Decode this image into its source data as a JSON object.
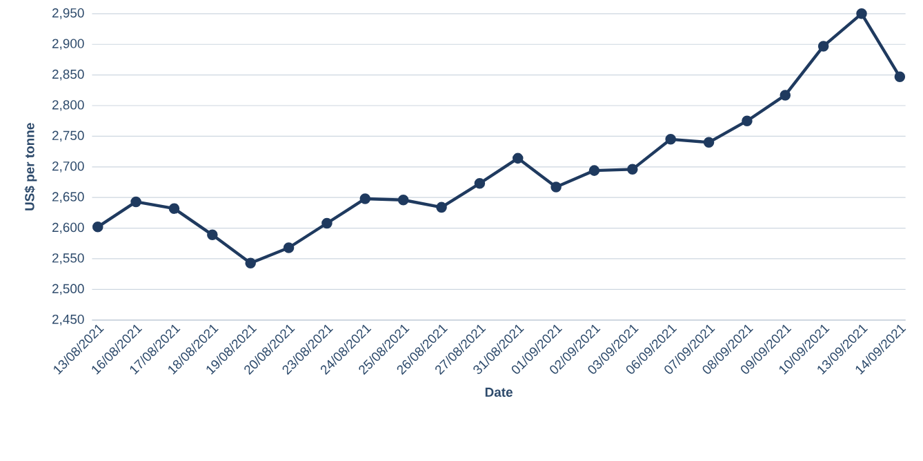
{
  "chart_data": {
    "type": "line",
    "xlabel": "Date",
    "ylabel": "US$ per tonne",
    "categories": [
      "13/08/2021",
      "16/08/2021",
      "17/08/2021",
      "18/08/2021",
      "19/08/2021",
      "20/08/2021",
      "23/08/2021",
      "24/08/2021",
      "25/08/2021",
      "26/08/2021",
      "27/08/2021",
      "31/08/2021",
      "01/09/2021",
      "02/09/2021",
      "03/09/2021",
      "06/09/2021",
      "07/09/2021",
      "08/09/2021",
      "09/09/2021",
      "10/09/2021",
      "13/09/2021",
      "14/09/2021"
    ],
    "values": [
      2602,
      2643,
      2632,
      2589,
      2543,
      2568,
      2608,
      2648,
      2646,
      2634,
      2673,
      2714,
      2667,
      2694,
      2696,
      2745,
      2740,
      2775,
      2817,
      2897,
      2950,
      2847
    ],
    "color": "#1f3a5f",
    "ylim": [
      2450,
      2950
    ],
    "yticks": [
      {
        "value": 2450,
        "label": "2,450"
      },
      {
        "value": 2500,
        "label": "2,500"
      },
      {
        "value": 2550,
        "label": "2,550"
      },
      {
        "value": 2600,
        "label": "2,600"
      },
      {
        "value": 2650,
        "label": "2,650"
      },
      {
        "value": 2700,
        "label": "2,700"
      },
      {
        "value": 2750,
        "label": "2,750"
      },
      {
        "value": 2800,
        "label": "2,800"
      },
      {
        "value": 2850,
        "label": "2,850"
      },
      {
        "value": 2900,
        "label": "2,900"
      },
      {
        "value": 2950,
        "label": "2,950"
      }
    ],
    "grid": "y",
    "marker": "circle",
    "line_style": "solid"
  }
}
